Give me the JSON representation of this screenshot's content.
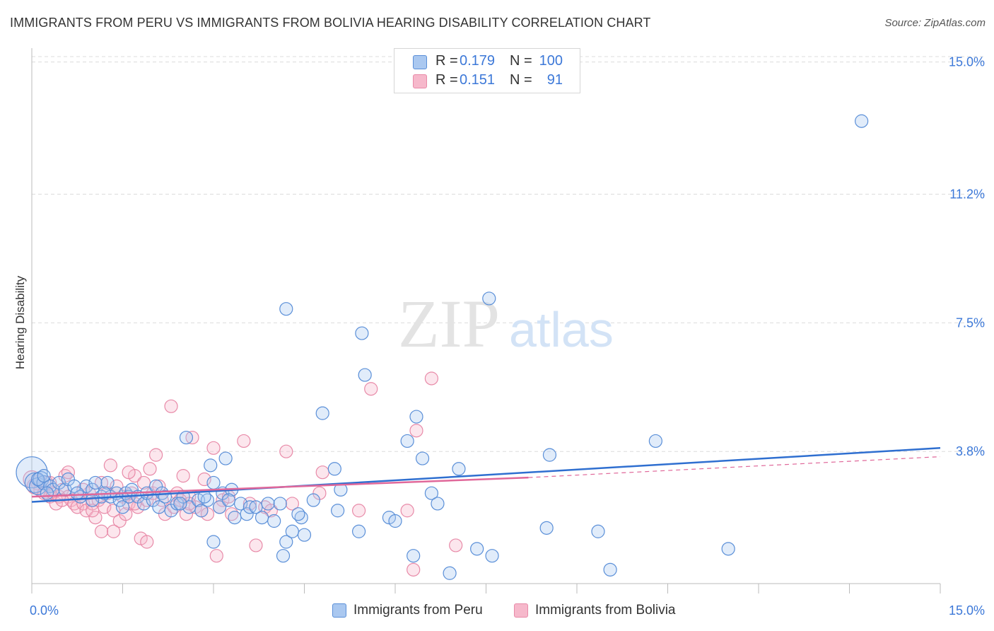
{
  "title": "IMMIGRANTS FROM PERU VS IMMIGRANTS FROM BOLIVIA HEARING DISABILITY CORRELATION CHART",
  "source": "Source: ZipAtlas.com",
  "watermark": {
    "zip": "ZIP",
    "atlas": "atlas"
  },
  "legend": {
    "r_label": "R =",
    "n_label": "N =",
    "rows": [
      {
        "series": "Immigrants from Peru",
        "r": "0.179",
        "n": "100"
      },
      {
        "series": "Immigrants from Bolivia",
        "r": "0.151",
        "n": "91"
      }
    ]
  },
  "chart_data": {
    "type": "scatter",
    "title": "IMMIGRANTS FROM PERU VS IMMIGRANTS FROM BOLIVIA HEARING DISABILITY CORRELATION CHART",
    "xlabel": "",
    "ylabel": "Hearing Disability",
    "xlim": [
      0,
      15
    ],
    "ylim": [
      0,
      15.4
    ],
    "x_tick_labels": [
      "0.0%",
      "15.0%"
    ],
    "y_ticks": [
      3.8,
      7.5,
      11.2,
      15.0
    ],
    "y_tick_labels": [
      "3.8%",
      "7.5%",
      "11.2%",
      "15.0%"
    ],
    "grid": true,
    "legend_position": "top-center",
    "colors": {
      "peru_fill": "#aac8f0",
      "peru_stroke": "#5a8fd8",
      "peru_line": "#2f6fd0",
      "bolivia_fill": "#f6b8cb",
      "bolivia_stroke": "#e88aa8",
      "bolivia_line": "#e0689a",
      "tick_label": "#3c78d8",
      "grid": "#dcdcdc"
    },
    "series": [
      {
        "name": "Immigrants from Peru",
        "regression": {
          "x": [
            0,
            15
          ],
          "y": [
            2.35,
            3.9
          ],
          "style": "solid"
        },
        "points": [
          [
            0.0,
            3.2,
            22
          ],
          [
            0.05,
            2.9,
            14
          ],
          [
            0.1,
            2.8,
            12
          ],
          [
            0.15,
            3.0,
            11
          ],
          [
            0.2,
            2.9,
            10
          ],
          [
            0.3,
            2.8,
            9
          ],
          [
            0.35,
            2.7,
            9
          ],
          [
            0.45,
            2.9,
            9
          ],
          [
            0.55,
            2.7,
            9
          ],
          [
            0.6,
            3.0,
            9
          ],
          [
            0.7,
            2.8,
            9
          ],
          [
            0.8,
            2.5,
            9
          ],
          [
            0.9,
            2.8,
            9
          ],
          [
            1.0,
            2.7,
            9
          ],
          [
            1.05,
            2.9,
            9
          ],
          [
            1.15,
            2.5,
            9
          ],
          [
            1.25,
            2.9,
            9
          ],
          [
            1.3,
            2.5,
            9
          ],
          [
            1.4,
            2.6,
            9
          ],
          [
            1.45,
            2.4,
            9
          ],
          [
            1.55,
            2.6,
            9
          ],
          [
            1.6,
            2.5,
            9
          ],
          [
            1.65,
            2.7,
            9
          ],
          [
            1.75,
            2.5,
            9
          ],
          [
            1.85,
            2.3,
            9
          ],
          [
            1.9,
            2.6,
            9
          ],
          [
            2.0,
            2.4,
            9
          ],
          [
            2.05,
            2.8,
            9
          ],
          [
            2.15,
            2.6,
            9
          ],
          [
            2.2,
            2.5,
            9
          ],
          [
            2.3,
            2.1,
            9
          ],
          [
            2.4,
            2.3,
            9
          ],
          [
            2.5,
            2.5,
            9
          ],
          [
            2.55,
            4.2,
            9
          ],
          [
            2.6,
            2.2,
            9
          ],
          [
            2.75,
            2.4,
            9
          ],
          [
            2.8,
            2.1,
            9
          ],
          [
            2.9,
            2.4,
            9
          ],
          [
            2.95,
            3.4,
            9
          ],
          [
            3.0,
            2.9,
            9
          ],
          [
            3.1,
            2.2,
            9
          ],
          [
            3.15,
            2.6,
            9
          ],
          [
            3.2,
            3.6,
            9
          ],
          [
            3.3,
            2.7,
            9
          ],
          [
            3.35,
            1.9,
            9
          ],
          [
            3.45,
            2.3,
            9
          ],
          [
            3.55,
            2.0,
            9
          ],
          [
            3.6,
            2.2,
            9
          ],
          [
            3.7,
            2.2,
            9
          ],
          [
            3.8,
            1.9,
            9
          ],
          [
            3.9,
            2.3,
            9
          ],
          [
            4.0,
            1.8,
            9
          ],
          [
            4.1,
            2.3,
            9
          ],
          [
            4.15,
            0.8,
            9
          ],
          [
            4.2,
            1.2,
            9
          ],
          [
            4.3,
            1.5,
            9
          ],
          [
            4.45,
            1.9,
            9
          ],
          [
            4.5,
            1.4,
            9
          ],
          [
            4.65,
            2.4,
            9
          ],
          [
            4.8,
            4.9,
            9
          ],
          [
            5.0,
            3.3,
            9
          ],
          [
            5.05,
            2.1,
            9
          ],
          [
            5.1,
            2.7,
            9
          ],
          [
            5.4,
            1.5,
            9
          ],
          [
            5.45,
            7.2,
            9
          ],
          [
            5.5,
            6.0,
            9
          ],
          [
            5.9,
            1.9,
            9
          ],
          [
            6.0,
            1.8,
            9
          ],
          [
            6.2,
            4.1,
            9
          ],
          [
            6.3,
            0.8,
            9
          ],
          [
            6.35,
            4.8,
            9
          ],
          [
            6.45,
            3.6,
            9
          ],
          [
            6.6,
            2.6,
            9
          ],
          [
            6.7,
            2.3,
            9
          ],
          [
            6.9,
            0.3,
            9
          ],
          [
            7.05,
            3.3,
            9
          ],
          [
            7.35,
            1.0,
            9
          ],
          [
            7.55,
            8.2,
            9
          ],
          [
            7.6,
            0.8,
            9
          ],
          [
            8.5,
            1.6,
            9
          ],
          [
            8.55,
            3.7,
            9
          ],
          [
            9.35,
            1.5,
            9
          ],
          [
            9.55,
            0.4,
            9
          ],
          [
            10.3,
            4.1,
            9
          ],
          [
            11.5,
            1.0,
            9
          ],
          [
            13.7,
            13.3,
            9
          ],
          [
            3.0,
            1.2,
            9
          ],
          [
            4.2,
            7.9,
            9
          ],
          [
            0.25,
            2.6,
            9
          ],
          [
            1.0,
            2.4,
            9
          ],
          [
            1.5,
            2.2,
            9
          ],
          [
            2.45,
            2.3,
            9
          ],
          [
            2.85,
            2.5,
            9
          ],
          [
            3.25,
            2.4,
            9
          ],
          [
            4.4,
            2.0,
            9
          ],
          [
            0.1,
            3.0,
            9
          ],
          [
            0.2,
            3.1,
            9
          ],
          [
            0.75,
            2.6,
            9
          ],
          [
            1.2,
            2.6,
            9
          ],
          [
            2.1,
            2.2,
            9
          ]
        ]
      },
      {
        "name": "Immigrants from Bolivia",
        "regression": {
          "x": [
            0,
            8.2
          ],
          "y": [
            2.5,
            3.05
          ],
          "style": "solid",
          "extension": {
            "x": [
              8.2,
              15
            ],
            "y": [
              3.05,
              3.65
            ],
            "style": "dashed"
          }
        },
        "points": [
          [
            0.0,
            3.0,
            12
          ],
          [
            0.05,
            2.8,
            11
          ],
          [
            0.1,
            2.9,
            10
          ],
          [
            0.15,
            2.7,
            10
          ],
          [
            0.2,
            2.6,
            9
          ],
          [
            0.25,
            2.9,
            9
          ],
          [
            0.3,
            2.5,
            9
          ],
          [
            0.35,
            2.6,
            9
          ],
          [
            0.4,
            2.3,
            9
          ],
          [
            0.45,
            2.5,
            9
          ],
          [
            0.5,
            2.7,
            9
          ],
          [
            0.55,
            3.1,
            9
          ],
          [
            0.6,
            2.5,
            9
          ],
          [
            0.65,
            2.4,
            9
          ],
          [
            0.7,
            2.3,
            9
          ],
          [
            0.75,
            2.2,
            9
          ],
          [
            0.8,
            2.5,
            9
          ],
          [
            0.85,
            2.3,
            9
          ],
          [
            0.9,
            2.1,
            9
          ],
          [
            0.95,
            2.6,
            9
          ],
          [
            1.0,
            2.3,
            9
          ],
          [
            1.05,
            1.9,
            9
          ],
          [
            1.1,
            2.4,
            9
          ],
          [
            1.15,
            2.9,
            9
          ],
          [
            1.2,
            2.2,
            9
          ],
          [
            1.25,
            2.6,
            9
          ],
          [
            1.3,
            3.4,
            9
          ],
          [
            1.35,
            2.1,
            9
          ],
          [
            1.4,
            2.8,
            9
          ],
          [
            1.45,
            1.8,
            9
          ],
          [
            1.5,
            2.5,
            9
          ],
          [
            1.55,
            2.0,
            9
          ],
          [
            1.6,
            2.3,
            9
          ],
          [
            1.65,
            2.6,
            9
          ],
          [
            1.7,
            3.1,
            9
          ],
          [
            1.75,
            2.2,
            9
          ],
          [
            1.8,
            1.3,
            9
          ],
          [
            1.85,
            2.9,
            9
          ],
          [
            1.9,
            2.4,
            9
          ],
          [
            1.95,
            3.3,
            9
          ],
          [
            2.0,
            2.6,
            9
          ],
          [
            2.1,
            2.8,
            9
          ],
          [
            2.15,
            2.4,
            9
          ],
          [
            2.2,
            2.0,
            9
          ],
          [
            2.3,
            5.1,
            9
          ],
          [
            2.35,
            2.2,
            9
          ],
          [
            2.4,
            2.6,
            9
          ],
          [
            2.5,
            3.1,
            9
          ],
          [
            2.55,
            2.0,
            9
          ],
          [
            2.6,
            2.5,
            9
          ],
          [
            2.65,
            4.2,
            9
          ],
          [
            2.7,
            2.2,
            9
          ],
          [
            2.8,
            2.1,
            9
          ],
          [
            2.9,
            2.0,
            9
          ],
          [
            3.0,
            3.9,
            9
          ],
          [
            3.05,
            0.8,
            9
          ],
          [
            3.15,
            2.4,
            9
          ],
          [
            3.25,
            2.5,
            9
          ],
          [
            3.5,
            4.1,
            9
          ],
          [
            3.6,
            2.3,
            9
          ],
          [
            3.7,
            1.1,
            9
          ],
          [
            3.85,
            2.2,
            9
          ],
          [
            3.95,
            2.1,
            9
          ],
          [
            4.2,
            3.8,
            9
          ],
          [
            4.3,
            2.3,
            9
          ],
          [
            4.75,
            2.6,
            9
          ],
          [
            4.8,
            3.2,
            9
          ],
          [
            5.4,
            2.1,
            9
          ],
          [
            5.6,
            5.6,
            9
          ],
          [
            6.2,
            2.1,
            9
          ],
          [
            6.3,
            0.4,
            9
          ],
          [
            6.35,
            4.4,
            9
          ],
          [
            6.6,
            5.9,
            9
          ],
          [
            7.0,
            1.1,
            9
          ],
          [
            0.1,
            3.0,
            9
          ],
          [
            0.3,
            2.9,
            9
          ],
          [
            0.6,
            3.2,
            9
          ],
          [
            1.15,
            1.5,
            9
          ],
          [
            1.35,
            1.5,
            9
          ],
          [
            1.6,
            3.2,
            9
          ],
          [
            1.9,
            1.2,
            9
          ],
          [
            2.05,
            3.7,
            9
          ],
          [
            2.45,
            2.4,
            9
          ],
          [
            2.85,
            3.0,
            9
          ],
          [
            3.3,
            2.0,
            9
          ],
          [
            0.85,
            2.7,
            9
          ],
          [
            1.0,
            2.1,
            9
          ],
          [
            1.7,
            2.3,
            9
          ],
          [
            2.6,
            2.3,
            9
          ],
          [
            3.1,
            2.2,
            9
          ],
          [
            0.5,
            2.4,
            9
          ]
        ]
      }
    ]
  }
}
